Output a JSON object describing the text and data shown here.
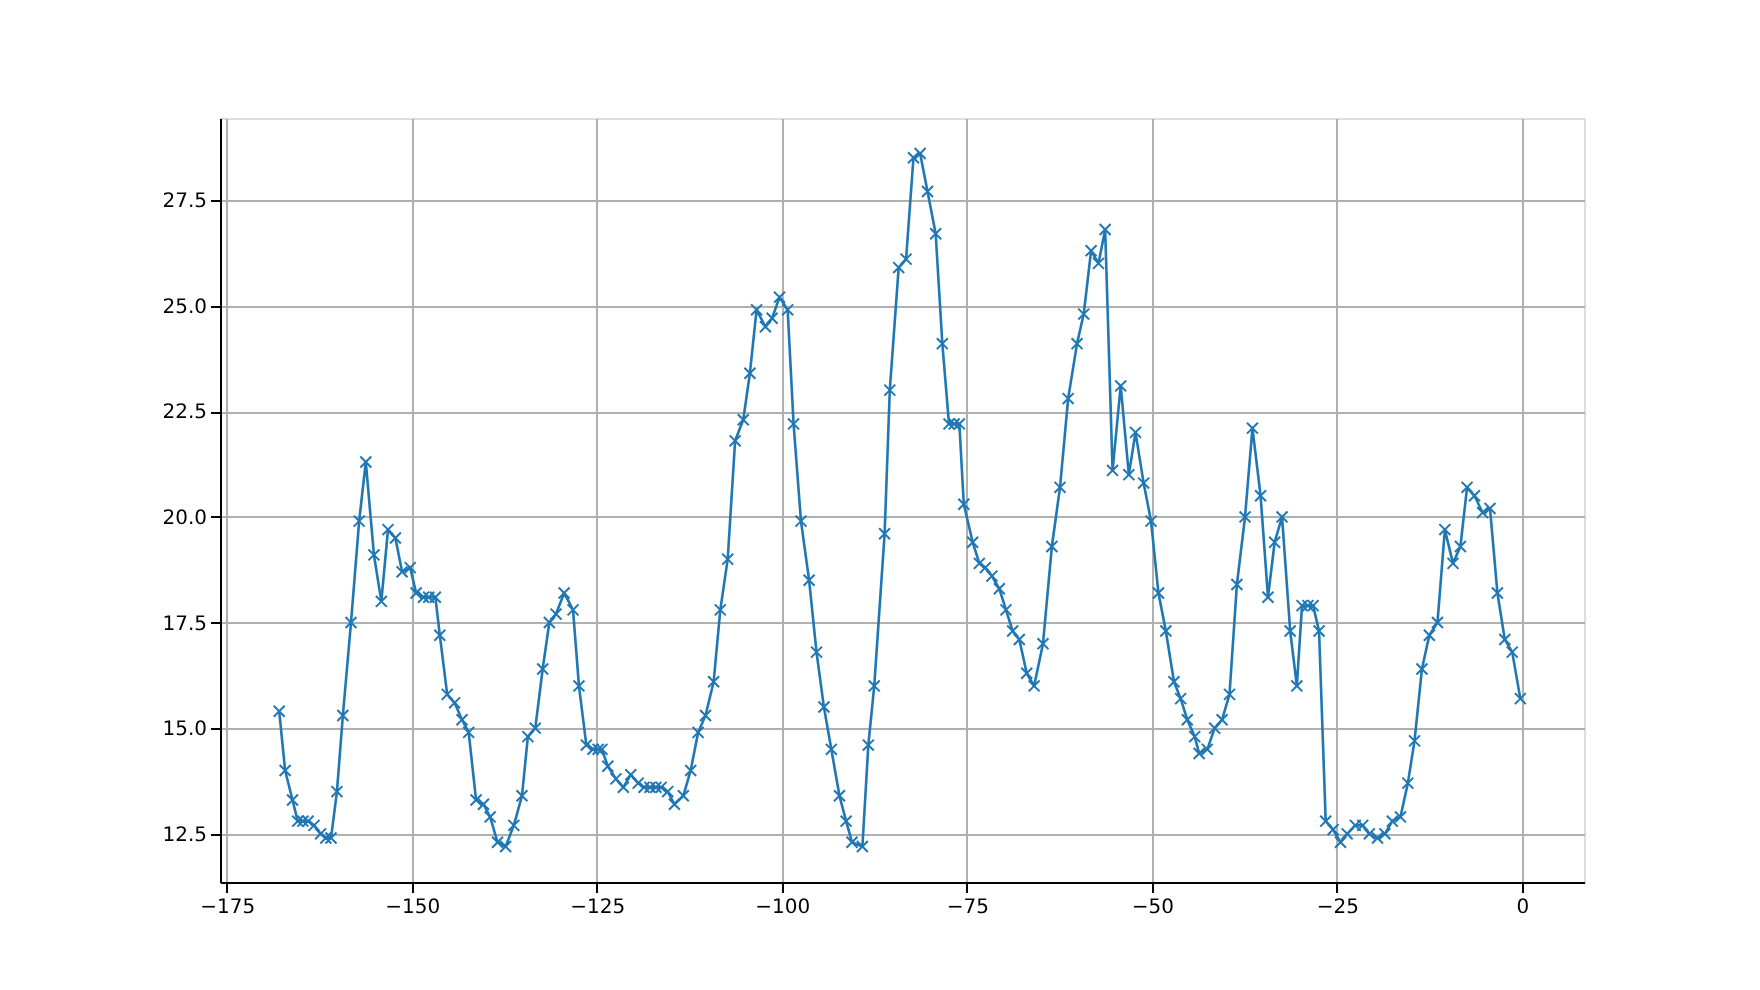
{
  "chart_data": {
    "type": "line",
    "marker": "cross",
    "line_style": "solid",
    "grid": true,
    "xlim": [
      -175.9,
      8.4
    ],
    "ylim": [
      11.36,
      29.44
    ],
    "xticks": [
      -175,
      -150,
      -125,
      -100,
      -75,
      -50,
      -25,
      0
    ],
    "yticks": [
      12.5,
      {
        "value": 15,
        "label": "15.0"
      },
      17.5,
      {
        "value": 20,
        "label": "20.0"
      },
      22.5,
      {
        "value": 25,
        "label": "25.0"
      },
      27.5
    ],
    "series": [
      {
        "color": "#1f77b4",
        "x": [
          -167.9,
          -167.1,
          -166.1,
          -165.4,
          -164.7,
          -164.0,
          -163.2,
          -162.3,
          -161.6,
          -160.9,
          -160.1,
          -159.3,
          -158.2,
          -157.1,
          -156.2,
          -155.1,
          -154.1,
          -153.2,
          -152.2,
          -151.3,
          -150.2,
          -149.4,
          -148.4,
          -147.7,
          -146.8,
          -146.2,
          -145.2,
          -144.2,
          -143.2,
          -142.3,
          -141.3,
          -140.3,
          -139.4,
          -138.4,
          -137.3,
          -136.2,
          -135.1,
          -134.3,
          -133.3,
          -132.3,
          -131.4,
          -130.5,
          -129.4,
          -128.2,
          -127.4,
          -126.4,
          -125.5,
          -124.8,
          -124.3,
          -123.5,
          -122.4,
          -121.4,
          -120.4,
          -119.4,
          -118.6,
          -117.8,
          -117.0,
          -116.3,
          -115.4,
          -114.5,
          -113.3,
          -112.3,
          -111.3,
          -110.3,
          -109.2,
          -108.3,
          -107.3,
          -106.3,
          -105.2,
          -104.3,
          -103.4,
          -102.2,
          -101.3,
          -100.3,
          -99.2,
          -98.4,
          -97.4,
          -96.3,
          -95.3,
          -94.3,
          -93.3,
          -92.2,
          -91.3,
          -90.5,
          -89.1,
          -88.3,
          -87.5,
          -86.1,
          -85.4,
          -84.2,
          -83.2,
          -82.2,
          -81.3,
          -80.3,
          -79.2,
          -78.3,
          -77.4,
          -76.7,
          -76.0,
          -75.4,
          -74.2,
          -73.3,
          -72.5,
          -71.6,
          -70.6,
          -69.7,
          -68.8,
          -67.9,
          -66.9,
          -65.9,
          -64.7,
          -63.5,
          -62.4,
          -61.3,
          -60.1,
          -59.2,
          -58.2,
          -57.2,
          -56.3,
          -55.3,
          -54.2,
          -53.1,
          -52.2,
          -51.1,
          -50.1,
          -49.1,
          -48.1,
          -47.0,
          -46.1,
          -45.2,
          -44.2,
          -43.6,
          -42.5,
          -41.5,
          -40.5,
          -39.5,
          -38.5,
          -37.4,
          -36.4,
          -35.3,
          -34.3,
          -33.4,
          -32.4,
          -31.3,
          -30.4,
          -29.7,
          -28.9,
          -28.2,
          -27.4,
          -26.5,
          -25.5,
          -24.5,
          -23.6,
          -22.5,
          -21.5,
          -20.6,
          -19.5,
          -18.5,
          -17.5,
          -16.4,
          -15.4,
          -14.5,
          -13.5,
          -12.5,
          -11.4,
          -10.4,
          -9.3,
          -8.3,
          -7.4,
          -6.4,
          -5.3,
          -4.3,
          -3.3,
          -2.3,
          -1.3,
          -0.2
        ],
        "values": [
          15.4,
          14.0,
          13.3,
          12.8,
          12.8,
          12.8,
          12.7,
          12.5,
          12.4,
          12.4,
          13.5,
          15.3,
          17.5,
          19.9,
          21.3,
          19.1,
          18.0,
          19.7,
          19.5,
          18.7,
          18.8,
          18.2,
          18.1,
          18.1,
          18.1,
          17.2,
          15.8,
          15.6,
          15.2,
          14.9,
          13.3,
          13.2,
          12.9,
          12.3,
          12.2,
          12.7,
          13.4,
          14.8,
          15.0,
          16.4,
          17.5,
          17.7,
          18.2,
          17.8,
          16.0,
          14.6,
          14.5,
          14.5,
          14.5,
          14.1,
          13.8,
          13.6,
          13.9,
          13.7,
          13.6,
          13.6,
          13.6,
          13.6,
          13.5,
          13.2,
          13.4,
          14.0,
          14.9,
          15.3,
          16.1,
          17.8,
          19.0,
          21.8,
          22.3,
          23.4,
          24.9,
          24.5,
          24.7,
          25.2,
          24.9,
          22.2,
          19.9,
          18.5,
          16.8,
          15.5,
          14.5,
          13.4,
          12.8,
          12.3,
          12.2,
          14.6,
          16.0,
          19.6,
          23.0,
          25.9,
          26.1,
          28.5,
          28.6,
          27.7,
          26.7,
          24.1,
          22.2,
          22.2,
          22.2,
          20.3,
          19.4,
          18.9,
          18.8,
          18.6,
          18.3,
          17.8,
          17.3,
          17.1,
          16.3,
          16.0,
          17.0,
          19.3,
          20.7,
          22.8,
          24.1,
          24.8,
          26.3,
          26.0,
          26.8,
          21.1,
          23.1,
          21.0,
          22.0,
          20.8,
          19.9,
          18.2,
          17.3,
          16.1,
          15.7,
          15.2,
          14.8,
          14.4,
          14.5,
          15.0,
          15.2,
          15.8,
          18.4,
          20.0,
          22.1,
          20.5,
          18.1,
          19.4,
          20.0,
          17.3,
          16.0,
          17.9,
          17.9,
          17.9,
          17.3,
          12.8,
          12.6,
          12.3,
          12.5,
          12.7,
          12.7,
          12.5,
          12.4,
          12.5,
          12.8,
          12.9,
          13.7,
          14.7,
          16.4,
          17.2,
          17.5,
          19.7,
          18.9,
          19.3,
          20.7,
          20.5,
          20.1,
          20.2,
          18.2,
          17.1,
          16.8,
          15.7
        ]
      }
    ]
  }
}
